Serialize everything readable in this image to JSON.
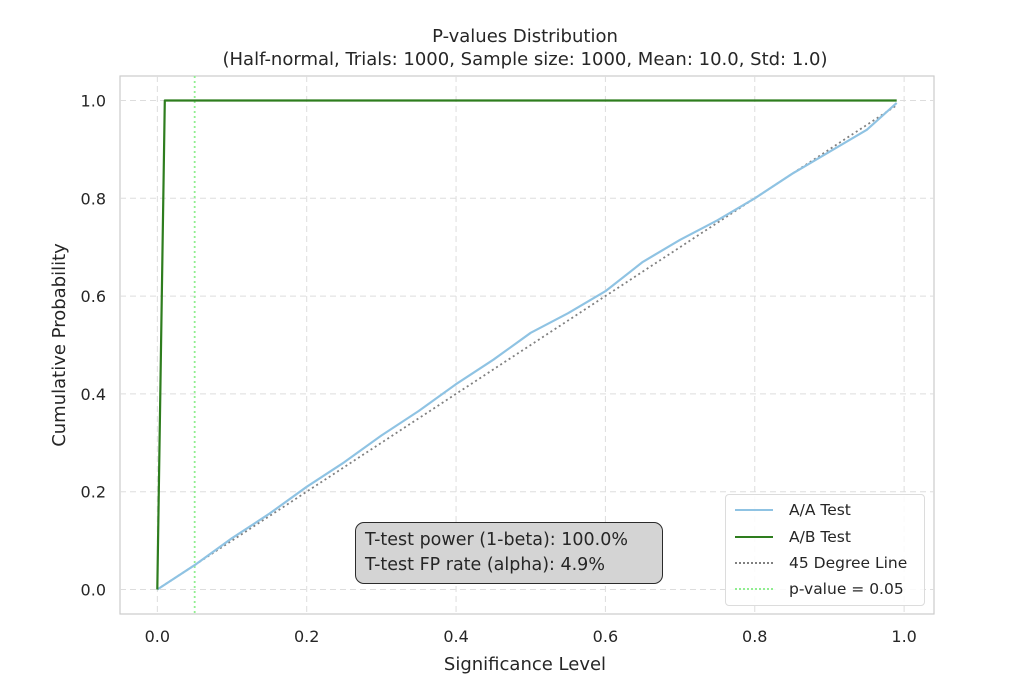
{
  "chart_data": {
    "type": "line",
    "title": "P-values Distribution",
    "subtitle": "(Half-normal, Trials: 1000, Sample size: 1000, Mean: 10.0, Std: 1.0)",
    "xlabel": "Significance Level",
    "ylabel": "Cumulative Probability",
    "xlim": [
      -0.05,
      1.04
    ],
    "ylim": [
      -0.05,
      1.05
    ],
    "xticks": [
      0.0,
      0.2,
      0.4,
      0.6,
      0.8,
      1.0
    ],
    "xtick_labels": [
      "0.0",
      "0.2",
      "0.4",
      "0.6",
      "0.8",
      "1.0"
    ],
    "yticks": [
      0.0,
      0.2,
      0.4,
      0.6,
      0.8,
      1.0
    ],
    "ytick_labels": [
      "0.0",
      "0.2",
      "0.4",
      "0.6",
      "0.8",
      "1.0"
    ],
    "grid": true,
    "legend_position": "lower-right",
    "series": [
      {
        "name": "A/A Test",
        "color": "#8fc3e3",
        "style": "solid",
        "x": [
          0.0,
          0.05,
          0.1,
          0.15,
          0.2,
          0.25,
          0.3,
          0.35,
          0.4,
          0.45,
          0.5,
          0.55,
          0.6,
          0.65,
          0.7,
          0.75,
          0.8,
          0.85,
          0.9,
          0.95,
          0.99
        ],
        "y": [
          0.0,
          0.05,
          0.105,
          0.155,
          0.21,
          0.26,
          0.315,
          0.365,
          0.42,
          0.47,
          0.525,
          0.565,
          0.61,
          0.67,
          0.715,
          0.755,
          0.8,
          0.85,
          0.895,
          0.94,
          0.995
        ]
      },
      {
        "name": "A/B Test",
        "color": "#2e7d1e",
        "style": "solid",
        "x": [
          0.0,
          0.01,
          0.99
        ],
        "y": [
          0.0,
          1.0,
          1.0
        ]
      },
      {
        "name": "45 Degree Line",
        "color": "#808080",
        "style": "dotted",
        "x": [
          0.0,
          0.99
        ],
        "y": [
          0.0,
          0.99
        ]
      }
    ],
    "vlines": [
      {
        "name": "p-value = 0.05",
        "x": 0.05,
        "color": "#90ee90",
        "style": "dotted"
      }
    ],
    "legend": [
      "A/A Test",
      "A/B Test",
      "45 Degree Line",
      "p-value = 0.05"
    ],
    "annotation": {
      "line1": "T-test power (1-beta): 100.0%",
      "line2": "T-test FP rate (alpha): 4.9%"
    }
  }
}
